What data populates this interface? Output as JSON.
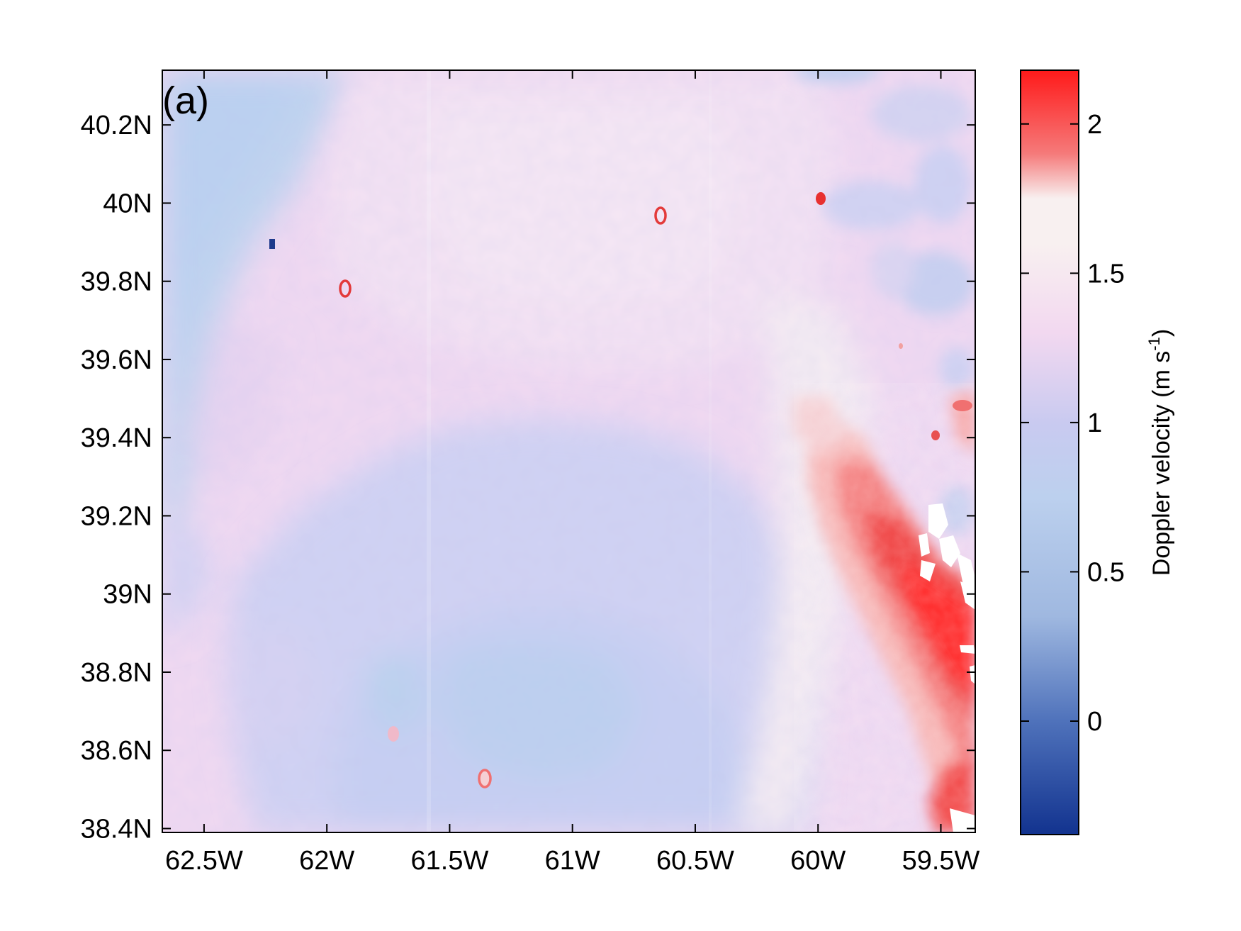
{
  "figure": {
    "panel_label": "(a)",
    "colorbar_label_main": "Doppler velocity (m s",
    "colorbar_label_sup": "-1",
    "colorbar_label_close": ")"
  },
  "chart_data": {
    "type": "heatmap",
    "title": "",
    "xlabel": "",
    "ylabel": "",
    "xlim": [
      -62.67,
      -59.36
    ],
    "ylim": [
      38.39,
      40.34
    ],
    "x_ticks": [
      -62.5,
      -62.0,
      -61.5,
      -61.0,
      -60.5,
      -60.0,
      -59.5
    ],
    "x_tick_labels": [
      "62.5W",
      "62W",
      "61.5W",
      "61W",
      "60.5W",
      "60W",
      "59.5W"
    ],
    "y_ticks": [
      38.4,
      38.6,
      38.8,
      39.0,
      39.2,
      39.4,
      39.6,
      39.8,
      40.0,
      40.2
    ],
    "y_tick_labels": [
      "38.4N",
      "38.6N",
      "38.8N",
      "39N",
      "39.2N",
      "39.4N",
      "39.6N",
      "39.8N",
      "40N",
      "40.2N"
    ],
    "colorbar": {
      "label": "Doppler velocity (m s-1)",
      "range": [
        -0.38,
        2.18
      ],
      "ticks": [
        0,
        0.5,
        1,
        1.5,
        2
      ],
      "tick_labels": [
        "0",
        "0.5",
        "1",
        "1.5",
        "2"
      ],
      "colormap": "blue-white-red",
      "color_stops": [
        {
          "value": -0.38,
          "color": "#12338f"
        },
        {
          "value": 0.0,
          "color": "#4f72bb"
        },
        {
          "value": 0.35,
          "color": "#9fb8e0"
        },
        {
          "value": 0.75,
          "color": "#bcd0ee"
        },
        {
          "value": 1.0,
          "color": "#c9caf0"
        },
        {
          "value": 1.3,
          "color": "#f2d8f0"
        },
        {
          "value": 1.6,
          "color": "#f8f0f0"
        },
        {
          "value": 1.75,
          "color": "#f8f0f0"
        },
        {
          "value": 1.9,
          "color": "#f57a7a"
        },
        {
          "value": 2.18,
          "color": "#ff1a1a"
        }
      ]
    },
    "field_summary": {
      "western_edge_mean": 0.8,
      "central_interior_mean": 1.35,
      "southern_central_low": 1.0,
      "northeast_mean": 1.45,
      "southeast_maximum": 2.18,
      "southeast_max_location": [
        -59.4,
        38.9
      ]
    },
    "point_features": [
      {
        "lon": -62.22,
        "lat": 39.89,
        "value": -0.3
      },
      {
        "lon": -61.92,
        "lat": 39.77,
        "value": 2.1
      },
      {
        "lon": -60.63,
        "lat": 39.96,
        "value": 2.0
      },
      {
        "lon": -59.98,
        "lat": 40.01,
        "value": 2.1
      },
      {
        "lon": -61.35,
        "lat": 38.53,
        "value": 2.0
      },
      {
        "lon": -61.75,
        "lat": 38.64,
        "value": 1.8
      }
    ],
    "no_data_regions": "white patches near 59.5W, 38.8N-39.2N"
  }
}
